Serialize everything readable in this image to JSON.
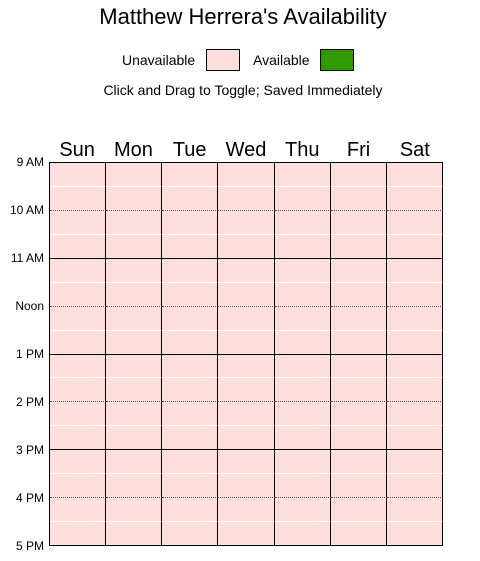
{
  "title": "Matthew Herrera's Availability",
  "legend": {
    "unavailable_label": "Unavailable",
    "available_label": "Available",
    "unavailable_color": "#ffdede",
    "available_color": "#339900"
  },
  "instructions": "Click and Drag to Toggle; Saved Immediately",
  "days": [
    "Sun",
    "Mon",
    "Tue",
    "Wed",
    "Thu",
    "Fri",
    "Sat"
  ],
  "time_labels": [
    "9 AM",
    "10 AM",
    "11 AM",
    "Noon",
    "1 PM",
    "2 PM",
    "3 PM",
    "4 PM",
    "5 PM"
  ],
  "slots_per_hour": 2,
  "availability": "all-unavailable"
}
